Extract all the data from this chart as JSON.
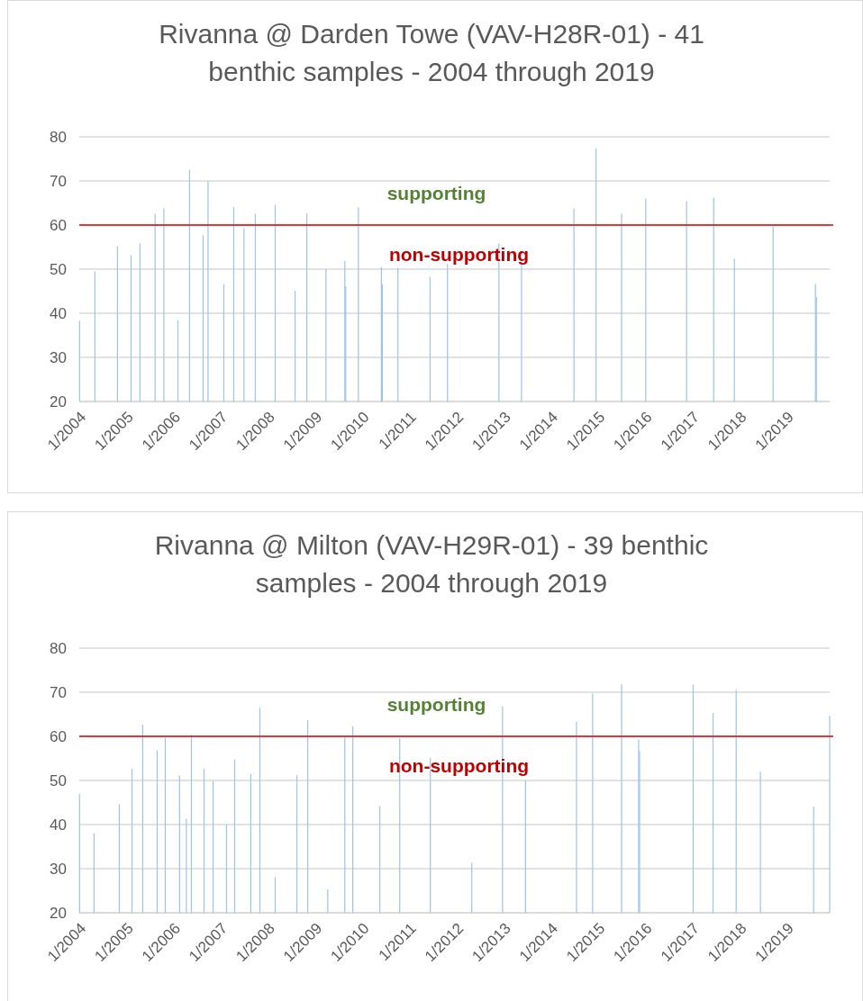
{
  "chart_data": [
    {
      "type": "bar",
      "title": "Rivanna @ Darden Towe (VAV-H28R-01) - 41 benthic samples - 2004 through 2019",
      "x": [
        "2004-01-03",
        "2004-05-01",
        "2004-10-23",
        "2005-02-05",
        "2005-04-15",
        "2005-08-10",
        "2005-10-17",
        "2006-02-03",
        "2006-05-04",
        "2006-08-17",
        "2006-09-24",
        "2007-01-24",
        "2007-04-11",
        "2007-06-29",
        "2007-09-25",
        "2008-02-26",
        "2008-07-29",
        "2008-10-28",
        "2009-03-25",
        "2009-08-18",
        "2009-08-25",
        "2009-12-01",
        "2010-05-28",
        "2010-06-04",
        "2010-10-03",
        "2011-06-09",
        "2011-10-22",
        "2012-11-23",
        "2013-05-17",
        "2014-06-27",
        "2014-12-15",
        "2015-07-01",
        "2016-01-04",
        "2016-11-15",
        "2017-06-13",
        "2017-11-20",
        "2018-09-16",
        "2019-08-10",
        "2019-08-17"
      ],
      "values": [
        38.3,
        49.5,
        55.2,
        53.2,
        55.8,
        62.6,
        63.8,
        38.4,
        72.5,
        57.7,
        69.9,
        46.6,
        64.1,
        59.3,
        62.6,
        64.6,
        45.1,
        62.6,
        50,
        51.9,
        46.1,
        64,
        50.5,
        46.6,
        50.3,
        48.3,
        51.2,
        55.8,
        51.2,
        63.8,
        77.4,
        62.6,
        66,
        65.4,
        66.2,
        52.4,
        59.7,
        46.6,
        43.7
      ],
      "color": "#9dc3e6",
      "ylim": [
        20,
        80
      ],
      "yticks": [
        20,
        30,
        40,
        50,
        60,
        70,
        80
      ],
      "grid": "y",
      "xlim": [
        "2004-01-01",
        "2019-11-28"
      ],
      "xticks": [
        {
          "value": "2004-01-01",
          "label": "1/2004"
        },
        {
          "value": "2005-01-01",
          "label": "1/2005"
        },
        {
          "value": "2006-01-01",
          "label": "1/2006"
        },
        {
          "value": "2007-01-01",
          "label": "1/2007"
        },
        {
          "value": "2008-01-01",
          "label": "1/2008"
        },
        {
          "value": "2009-01-01",
          "label": "1/2009"
        },
        {
          "value": "2010-01-01",
          "label": "1/2010"
        },
        {
          "value": "2011-01-01",
          "label": "1/2011"
        },
        {
          "value": "2012-01-01",
          "label": "1/2012"
        },
        {
          "value": "2013-01-01",
          "label": "1/2013"
        },
        {
          "value": "2014-01-01",
          "label": "1/2014"
        },
        {
          "value": "2015-01-01",
          "label": "1/2015"
        },
        {
          "value": "2016-01-01",
          "label": "1/2016"
        },
        {
          "value": "2017-01-01",
          "label": "1/2017"
        },
        {
          "value": "2018-01-01",
          "label": "1/2018"
        },
        {
          "value": "2019-01-01",
          "label": "1/2019"
        }
      ],
      "ref_lines": [
        {
          "axis": "y",
          "value": 60,
          "color": "#e00000"
        }
      ],
      "annotations": [
        "supporting",
        "non-supporting"
      ]
    },
    {
      "type": "bar",
      "title": "Rivanna @ Milton (VAV-H29R-01) - 39 benthic samples - 2004 through 2019",
      "x": [
        "2004-01-03",
        "2004-04-24",
        "2004-11-06",
        "2005-02-12",
        "2005-05-06",
        "2005-08-26",
        "2005-10-28",
        "2006-02-16",
        "2006-04-09",
        "2006-05-18",
        "2006-08-24",
        "2006-11-02",
        "2007-02-14",
        "2007-04-18",
        "2007-08-21",
        "2007-10-30",
        "2008-02-26",
        "2008-08-12",
        "2008-11-04",
        "2009-04-08",
        "2009-08-18",
        "2009-10-19",
        "2010-05-16",
        "2010-10-17",
        "2011-06-11",
        "2012-04-27",
        "2012-12-21",
        "2013-06-17",
        "2014-07-17",
        "2014-11-19",
        "2015-07-01",
        "2015-11-10",
        "2015-11-17",
        "2017-01-05",
        "2017-06-08",
        "2017-12-04",
        "2018-06-10",
        "2019-07-27",
        "2019-11-28"
      ],
      "values": [
        46.9,
        38,
        44.6,
        52.7,
        62.7,
        56.8,
        59.7,
        51.1,
        41.3,
        60.3,
        52.7,
        49.9,
        40,
        54.8,
        51.5,
        66.5,
        28.1,
        51.2,
        63.7,
        25.3,
        59.8,
        62.3,
        44.2,
        59.6,
        55.2,
        31.3,
        66.8,
        50,
        63.3,
        69.7,
        71.8,
        59.3,
        56.6,
        71.7,
        65.3,
        70.5,
        52,
        44.1,
        64.7
      ],
      "color": "#9dc3e6",
      "ylim": [
        20,
        80
      ],
      "yticks": [
        20,
        30,
        40,
        50,
        60,
        70,
        80
      ],
      "grid": "y",
      "xlim": [
        "2004-01-01",
        "2019-11-28"
      ],
      "xticks": [
        {
          "value": "2004-01-01",
          "label": "1/2004"
        },
        {
          "value": "2005-01-01",
          "label": "1/2005"
        },
        {
          "value": "2006-01-01",
          "label": "1/2006"
        },
        {
          "value": "2007-01-01",
          "label": "1/2007"
        },
        {
          "value": "2008-01-01",
          "label": "1/2008"
        },
        {
          "value": "2009-01-01",
          "label": "1/2009"
        },
        {
          "value": "2010-01-01",
          "label": "1/2010"
        },
        {
          "value": "2011-01-01",
          "label": "1/2011"
        },
        {
          "value": "2012-01-01",
          "label": "1/2012"
        },
        {
          "value": "2013-01-01",
          "label": "1/2013"
        },
        {
          "value": "2014-01-01",
          "label": "1/2014"
        },
        {
          "value": "2015-01-01",
          "label": "1/2015"
        },
        {
          "value": "2016-01-01",
          "label": "1/2016"
        },
        {
          "value": "2017-01-01",
          "label": "1/2017"
        },
        {
          "value": "2018-01-01",
          "label": "1/2018"
        },
        {
          "value": "2019-01-01",
          "label": "1/2019"
        }
      ],
      "ref_lines": [
        {
          "axis": "y",
          "value": 60,
          "color": "#e00000"
        }
      ],
      "annotations": [
        "supporting",
        "non-supporting"
      ]
    }
  ]
}
